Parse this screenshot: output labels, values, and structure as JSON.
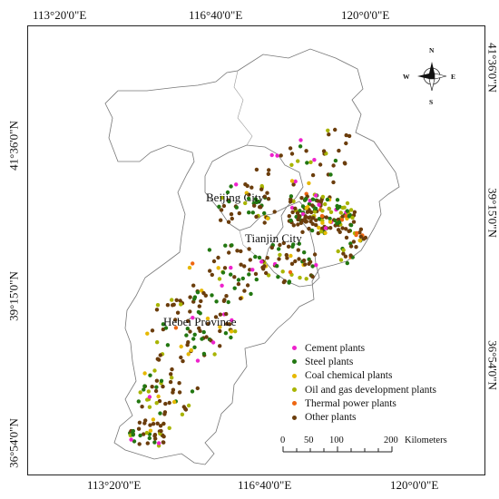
{
  "coordinates": {
    "top": [
      "113°20'0\"E",
      "116°40'0\"E",
      "120°0'0\"E"
    ],
    "bottom": [
      "113°20'0\"E",
      "116°40'0\"E",
      "120°0'0\"E"
    ],
    "left": [
      "41°36'0\"N",
      "39°15'0\"N",
      "36°54'0\"N"
    ],
    "right": [
      "41°36'0\"N",
      "39°15'0\"N",
      "36°54'0\"N"
    ]
  },
  "regions": {
    "beijing": "Beijing City",
    "tianjin": "Tianjin City",
    "hebei": "Hebei Province"
  },
  "legend": {
    "items": [
      {
        "label": "Cement plants",
        "color": "#ee22cc"
      },
      {
        "label": "Steel plants",
        "color": "#227711"
      },
      {
        "label": "Coal chemical plants",
        "color": "#e6b800"
      },
      {
        "label": "Oil and gas development plants",
        "color": "#a8b400"
      },
      {
        "label": "Thermal power plants",
        "color": "#ee6611"
      },
      {
        "label": "Other plants",
        "color": "#6b3d0c"
      }
    ]
  },
  "scale_bar": {
    "ticks": [
      "0",
      "50",
      "100",
      "200"
    ],
    "unit": "Kilometers"
  },
  "compass": {
    "n": "N",
    "s": "S",
    "e": "E",
    "w": "W"
  }
}
